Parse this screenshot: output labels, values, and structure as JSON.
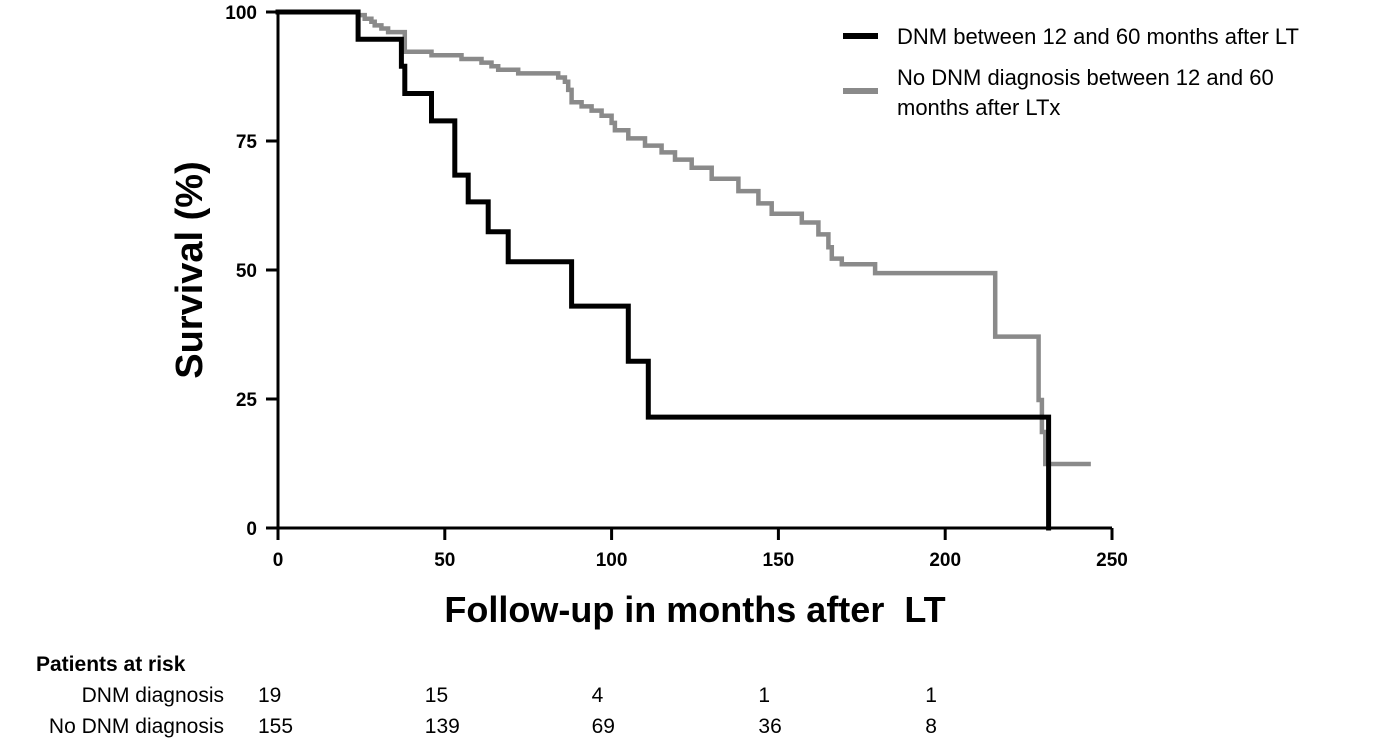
{
  "chart_data": {
    "type": "line",
    "subtype": "kaplan-meier step",
    "title": "",
    "xlabel": "Follow-up in months after  LT",
    "ylabel": "Survival (%)",
    "xlim": [
      0,
      250
    ],
    "ylim": [
      0,
      100
    ],
    "xticks": [
      "0",
      "50",
      "100",
      "150",
      "200",
      "250"
    ],
    "yticks": [
      "0",
      "25",
      "50",
      "75",
      "100"
    ],
    "grid": false,
    "legend_position": "top-right",
    "series": [
      {
        "name": "DNM between 12 and 60 months after LT",
        "color": "#000000",
        "x": [
          0,
          24,
          37,
          38,
          46,
          53,
          57,
          63,
          69,
          88,
          105,
          111,
          231,
          231
        ],
        "y": [
          100,
          94.7,
          89.5,
          84.2,
          78.9,
          68.4,
          63.2,
          57.4,
          51.6,
          43.0,
          32.3,
          21.5,
          21.5,
          0
        ]
      },
      {
        "name": "No DNM diagnosis between 12 and 60 months after LTx",
        "color": "#8a8a8a",
        "x": [
          0,
          24,
          26,
          28,
          29,
          31,
          33,
          38,
          46,
          55,
          61,
          64,
          66,
          72,
          84,
          86,
          87,
          88,
          91,
          94,
          97,
          100,
          101,
          105,
          110,
          115,
          119,
          124,
          130,
          138,
          144,
          148,
          157,
          162,
          165,
          166,
          169,
          179,
          215,
          228,
          229,
          230,
          243
        ],
        "y": [
          100,
          99.4,
          98.7,
          98.1,
          97.4,
          96.8,
          96.1,
          92.3,
          91.6,
          90.9,
          90.2,
          89.5,
          88.8,
          88.1,
          87.3,
          86.5,
          84.9,
          82.5,
          81.7,
          80.9,
          79.9,
          78.5,
          77.1,
          75.5,
          74.1,
          72.8,
          71.4,
          69.8,
          67.7,
          65.3,
          62.9,
          60.9,
          59.2,
          56.9,
          54.4,
          52.2,
          51.1,
          49.4,
          37.1,
          24.8,
          18.6,
          12.4,
          12.4
        ]
      }
    ],
    "risk_table": {
      "title": "Patients at risk",
      "rows": [
        {
          "label": "DNM diagnosis",
          "values": [
            "19",
            "15",
            "4",
            "1",
            "1"
          ]
        },
        {
          "label": "No DNM diagnosis",
          "values": [
            "155",
            "139",
            "69",
            "36",
            "8"
          ]
        }
      ]
    }
  }
}
